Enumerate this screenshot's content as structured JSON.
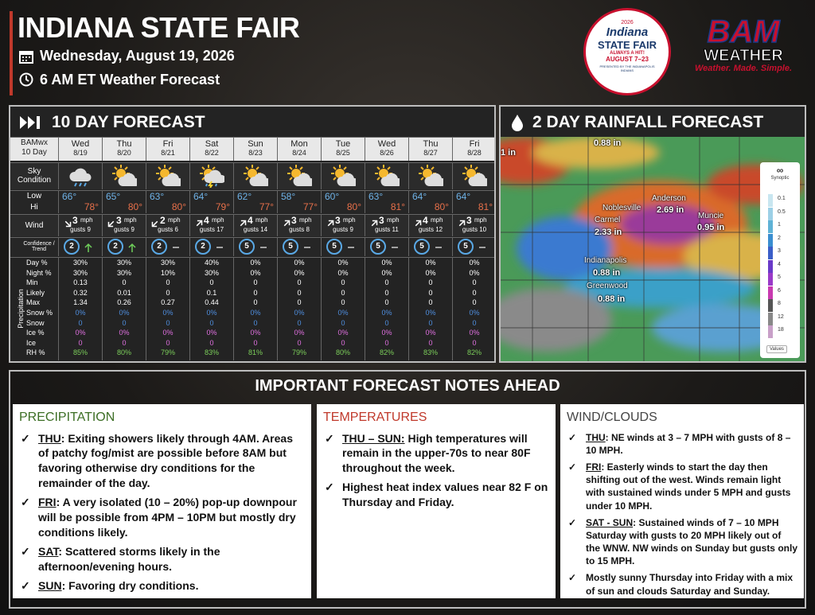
{
  "header": {
    "title": "INDIANA STATE FAIR",
    "date": "Wednesday, August 19, 2026",
    "subtitle": "6 AM ET Weather Forecast"
  },
  "fair_logo": {
    "year": "2026",
    "name": "Indiana",
    "name2": "STATE FAIR",
    "tagline": "ALWAYS A HIT!",
    "dates": "AUGUST 7–23",
    "presenter": "PRESENTED BY THE INDIANAPOLIS INDIANS"
  },
  "bam_logo": {
    "name": "BAM",
    "sub": "WEATHER",
    "tagline": "Weather. Made. Simple."
  },
  "forecast": {
    "title": "10 DAY FORECAST",
    "corner": [
      "BAMwx",
      "10 Day"
    ],
    "sky_label": "Sky Condition",
    "low_label": "Low",
    "hi_label": "Hi",
    "wind_label": "Wind",
    "confidence_label": "Confidence / Trend",
    "precip_group": "Precipitation",
    "wind_unit": "mph",
    "precip_labels": [
      "Day %",
      "Night %",
      "Min",
      "Likely",
      "Max",
      "Snow %",
      "Snow",
      "Ice %",
      "Ice",
      "RH %"
    ],
    "days": [
      {
        "day": "Wed",
        "date": "8/19",
        "low": "66°",
        "hi": "78°",
        "wind": "3",
        "gusts": "gusts 9",
        "confidence": "2",
        "precip": [
          "30%",
          "30%",
          "0.13",
          "0.32",
          "1.34",
          "0%",
          "0",
          "0%",
          "0",
          "85%"
        ]
      },
      {
        "day": "Thu",
        "date": "8/20",
        "low": "65°",
        "hi": "80°",
        "wind": "3",
        "gusts": "gusts 9",
        "confidence": "2",
        "precip": [
          "30%",
          "30%",
          "0",
          "0.01",
          "0.26",
          "0%",
          "0",
          "0%",
          "0",
          "80%"
        ]
      },
      {
        "day": "Fri",
        "date": "8/21",
        "low": "63°",
        "hi": "80°",
        "wind": "2",
        "gusts": "gusts 6",
        "confidence": "2",
        "precip": [
          "30%",
          "10%",
          "0",
          "0",
          "0.27",
          "0%",
          "0",
          "0%",
          "0",
          "79%"
        ]
      },
      {
        "day": "Sat",
        "date": "8/22",
        "low": "64°",
        "hi": "79°",
        "wind": "4",
        "gusts": "gusts 17",
        "confidence": "2",
        "precip": [
          "40%",
          "30%",
          "0",
          "0.1",
          "0.44",
          "0%",
          "0",
          "0%",
          "0",
          "83%"
        ]
      },
      {
        "day": "Sun",
        "date": "8/23",
        "low": "62°",
        "hi": "77°",
        "wind": "4",
        "gusts": "gusts 14",
        "confidence": "5",
        "precip": [
          "0%",
          "0%",
          "0",
          "0",
          "0",
          "0%",
          "0",
          "0%",
          "0",
          "81%"
        ]
      },
      {
        "day": "Mon",
        "date": "8/24",
        "low": "58°",
        "hi": "77°",
        "wind": "3",
        "gusts": "gusts 8",
        "confidence": "5",
        "precip": [
          "0%",
          "0%",
          "0",
          "0",
          "0",
          "0%",
          "0",
          "0%",
          "0",
          "79%"
        ]
      },
      {
        "day": "Tue",
        "date": "8/25",
        "low": "60°",
        "hi": "80°",
        "wind": "3",
        "gusts": "gusts 9",
        "confidence": "5",
        "precip": [
          "0%",
          "0%",
          "0",
          "0",
          "0",
          "0%",
          "0",
          "0%",
          "0",
          "80%"
        ]
      },
      {
        "day": "Wed",
        "date": "8/26",
        "low": "63°",
        "hi": "81°",
        "wind": "3",
        "gusts": "gusts 11",
        "confidence": "5",
        "precip": [
          "0%",
          "0%",
          "0",
          "0",
          "0",
          "0%",
          "0",
          "0%",
          "0",
          "82%"
        ]
      },
      {
        "day": "Thu",
        "date": "8/27",
        "low": "64°",
        "hi": "80°",
        "wind": "4",
        "gusts": "gusts 12",
        "confidence": "5",
        "precip": [
          "0%",
          "0%",
          "0",
          "0",
          "0",
          "0%",
          "0",
          "0%",
          "0",
          "83%"
        ]
      },
      {
        "day": "Fri",
        "date": "8/28",
        "low": "64°",
        "hi": "81°",
        "wind": "3",
        "gusts": "gusts 10",
        "confidence": "5",
        "precip": [
          "0%",
          "0%",
          "0",
          "0",
          "0",
          "0%",
          "0",
          "0%",
          "0",
          "82%"
        ]
      }
    ]
  },
  "rainfall": {
    "title": "2 DAY RAINFALL FORECAST",
    "labels": [
      "0.88 in",
      "1 in",
      "Muncie",
      "0.95 in",
      "Anderson",
      "2.69 in",
      "Noblesville",
      "Carmel",
      "2.33 in",
      "Indianapolis",
      "0.88 in",
      "Greenwood",
      "0.88 in"
    ],
    "legend_title": "Synoptic",
    "legend": [
      "0.1",
      "0.5",
      "1",
      "2",
      "3",
      "4",
      "5",
      "6",
      "8",
      "12",
      "18"
    ],
    "legend_button": "Values"
  },
  "notes": {
    "title": "IMPORTANT FORECAST NOTES AHEAD",
    "sections": [
      {
        "heading": "PRECIPITATION",
        "items": [
          {
            "lead": "THU",
            "text": ": Exiting showers likely through 4AM. Areas of patchy fog/mist are possible before 8AM but favoring otherwise dry conditions for the remainder of the day."
          },
          {
            "lead": "FRI",
            "text": ": A very isolated (10 – 20%) pop-up downpour will be possible from 4PM – 10PM but mostly dry conditions likely."
          },
          {
            "lead": "SAT",
            "text": ": Scattered storms likely in the afternoon/evening hours."
          },
          {
            "lead": "SUN",
            "text": ": Favoring dry conditions."
          }
        ]
      },
      {
        "heading": "TEMPERATURES",
        "items": [
          {
            "lead": "THU – SUN:",
            "text": " High temperatures will remain in the upper-70s to near 80F throughout the week."
          },
          {
            "text": "Highest heat index values near 82 F on Thursday and Friday."
          }
        ]
      },
      {
        "heading": "WIND/CLOUDS",
        "items": [
          {
            "lead": "THU",
            "text": ": NE winds at 3 – 7 MPH with gusts of 8 – 10 MPH."
          },
          {
            "lead": "FRI",
            "text": ": Easterly winds to start the day then shifting out of the west. Winds remain light with sustained winds under 5 MPH and gusts under 10 MPH."
          },
          {
            "lead": "SAT - SUN",
            "text": ": Sustained winds of 7 – 10 MPH Saturday with gusts to 20 MPH likely out of the WNW.  NW winds on Sunday but gusts only to 15 MPH."
          },
          {
            "text": "Mostly sunny Thursday into Friday with a mix of sun and clouds Saturday and Sunday."
          }
        ]
      }
    ]
  }
}
